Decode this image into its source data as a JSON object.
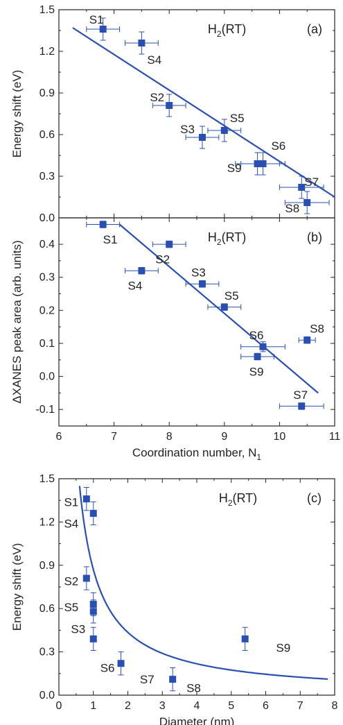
{
  "colors": {
    "marker": "#2a4fb3",
    "fit": "#2a4fb3",
    "axis": "#222222",
    "text": "#222222"
  },
  "chart_data": [
    {
      "panel": "(a)",
      "type": "scatter",
      "condition": "H2(RT)",
      "xlabel": "",
      "ylabel": "Energy shift (eV)",
      "xlim": [
        6,
        11
      ],
      "ylim": [
        0.0,
        1.5
      ],
      "xticks": [
        6,
        7,
        8,
        9,
        10,
        11
      ],
      "yticks": [
        "0.0",
        "0.3",
        "0.6",
        "0.9",
        "1.2",
        "1.5"
      ],
      "x_tick_labels_shown": false,
      "points": [
        {
          "label": "S1",
          "x": 6.8,
          "y": 1.36,
          "xerr": 0.3,
          "yerr": 0.08,
          "lx": 6.55,
          "ly": 1.43
        },
        {
          "label": "S4",
          "x": 7.5,
          "y": 1.26,
          "xerr": 0.3,
          "yerr": 0.08,
          "lx": 7.6,
          "ly": 1.14
        },
        {
          "label": "S2",
          "x": 8.0,
          "y": 0.81,
          "xerr": 0.3,
          "yerr": 0.08,
          "lx": 7.65,
          "ly": 0.87
        },
        {
          "label": "S3",
          "x": 8.6,
          "y": 0.58,
          "xerr": 0.3,
          "yerr": 0.08,
          "lx": 8.2,
          "ly": 0.64
        },
        {
          "label": "S5",
          "x": 9.0,
          "y": 0.63,
          "xerr": 0.3,
          "yerr": 0.08,
          "lx": 9.1,
          "ly": 0.72
        },
        {
          "label": "S9",
          "x": 9.6,
          "y": 0.39,
          "xerr": 0.4,
          "yerr": 0.08,
          "lx": 9.05,
          "ly": 0.36
        },
        {
          "label": "S6",
          "x": 9.7,
          "y": 0.39,
          "xerr": 0.4,
          "yerr": 0.08,
          "lx": 9.85,
          "ly": 0.52
        },
        {
          "label": "S7",
          "x": 10.4,
          "y": 0.22,
          "xerr": 0.4,
          "yerr": 0.08,
          "lx": 10.45,
          "ly": 0.26
        },
        {
          "label": "S8",
          "x": 10.5,
          "y": 0.11,
          "xerr": 0.4,
          "yerr": 0.08,
          "lx": 10.1,
          "ly": 0.07
        }
      ],
      "fit": {
        "kind": "linear",
        "x": [
          6.25,
          11.0
        ],
        "y": [
          1.37,
          0.15
        ]
      }
    },
    {
      "panel": "(b)",
      "type": "scatter",
      "condition": "H2(RT)",
      "xlabel": "Coordination number, N1",
      "ylabel": "ΔXANES peak area (arb. units)",
      "xlim": [
        6,
        11
      ],
      "ylim": [
        -0.15,
        0.48
      ],
      "xticks": [
        6,
        7,
        8,
        9,
        10,
        11
      ],
      "yticks": [
        "-0.1",
        "0.0",
        "0.1",
        "0.2",
        "0.3",
        "0.4"
      ],
      "points": [
        {
          "label": "S1",
          "x": 6.8,
          "y": 0.46,
          "xerr": 0.3,
          "yerr": 0.01,
          "lx": 6.8,
          "ly": 0.415
        },
        {
          "label": "S2",
          "x": 8.0,
          "y": 0.4,
          "xerr": 0.3,
          "yerr": 0.01,
          "lx": 7.75,
          "ly": 0.355
        },
        {
          "label": "S4",
          "x": 7.5,
          "y": 0.32,
          "xerr": 0.3,
          "yerr": 0.01,
          "lx": 7.25,
          "ly": 0.275
        },
        {
          "label": "S3",
          "x": 8.6,
          "y": 0.28,
          "xerr": 0.3,
          "yerr": 0.01,
          "lx": 8.4,
          "ly": 0.315
        },
        {
          "label": "S5",
          "x": 9.0,
          "y": 0.21,
          "xerr": 0.3,
          "yerr": 0.01,
          "lx": 9.0,
          "ly": 0.245
        },
        {
          "label": "S6",
          "x": 9.7,
          "y": 0.09,
          "xerr": 0.4,
          "yerr": 0.015,
          "lx": 9.45,
          "ly": 0.125
        },
        {
          "label": "S8",
          "x": 10.5,
          "y": 0.11,
          "xerr": 0.15,
          "yerr": 0.01,
          "lx": 10.55,
          "ly": 0.145
        },
        {
          "label": "S9",
          "x": 9.6,
          "y": 0.06,
          "xerr": 0.3,
          "yerr": 0.01,
          "lx": 9.45,
          "ly": 0.015
        },
        {
          "label": "S7",
          "x": 10.4,
          "y": -0.09,
          "xerr": 0.4,
          "yerr": 0.01,
          "lx": 10.25,
          "ly": -0.055
        }
      ],
      "fit": {
        "kind": "linear",
        "x": [
          7.1,
          10.7
        ],
        "y": [
          0.46,
          -0.05
        ]
      }
    },
    {
      "panel": "(c)",
      "type": "scatter",
      "condition": "H2(RT)",
      "xlabel": "Diameter (nm)",
      "ylabel": "Energy shift (eV)",
      "xlim": [
        0,
        8
      ],
      "ylim": [
        0.0,
        1.5
      ],
      "xticks": [
        "0",
        "1",
        "2",
        "3",
        "4",
        "5",
        "6",
        "7",
        "8"
      ],
      "yticks": [
        "0.0",
        "0.3",
        "0.6",
        "0.9",
        "1.2",
        "1.5"
      ],
      "points": [
        {
          "label": "S1",
          "x": 0.8,
          "y": 1.36,
          "xerr": 0,
          "yerr": 0.08,
          "lx": 0.15,
          "ly": 1.34
        },
        {
          "label": "S4",
          "x": 1.0,
          "y": 1.26,
          "xerr": 0,
          "yerr": 0.08,
          "lx": 0.15,
          "ly": 1.19
        },
        {
          "label": "S2",
          "x": 0.8,
          "y": 0.81,
          "xerr": 0,
          "yerr": 0.08,
          "lx": 0.15,
          "ly": 0.79
        },
        {
          "label": "S5",
          "x": 1.0,
          "y": 0.63,
          "xerr": 0,
          "yerr": 0.08,
          "lx": 0.15,
          "ly": 0.61
        },
        {
          "label": "S3",
          "x": 1.0,
          "y": 0.58,
          "xerr": 0,
          "yerr": 0.08,
          "lx": 0.35,
          "ly": 0.46
        },
        {
          "label": "S6-pt",
          "x": 1.0,
          "y": 0.39,
          "xerr": 0,
          "yerr": 0.08
        },
        {
          "label": "S7-pt",
          "x": 1.8,
          "y": 0.22,
          "xerr": 0,
          "yerr": 0.08
        },
        {
          "label": "S8-pt",
          "x": 3.3,
          "y": 0.11,
          "xerr": 0,
          "yerr": 0.08
        },
        {
          "label": "S9-pt",
          "x": 5.4,
          "y": 0.39,
          "xerr": 0,
          "yerr": 0.08
        }
      ],
      "text_labels": [
        {
          "text": "S6",
          "lx": 1.2,
          "ly": 0.19
        },
        {
          "text": "S7",
          "lx": 2.35,
          "ly": 0.11
        },
        {
          "text": "S8",
          "lx": 3.7,
          "ly": 0.05
        },
        {
          "text": "S9",
          "lx": 6.3,
          "ly": 0.33
        }
      ],
      "fit": {
        "kind": "power",
        "a": 0.87,
        "b": -1.0,
        "xmin": 0.6,
        "xmax": 7.8
      }
    }
  ]
}
